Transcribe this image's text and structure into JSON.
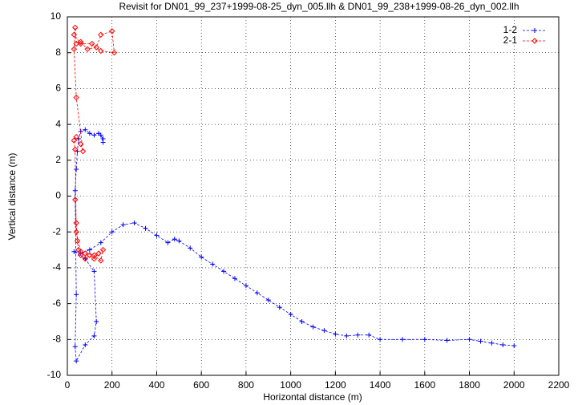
{
  "chart_data": {
    "type": "line",
    "title": "Revisit for DN01_99_237+1999-08-25_dyn_005.llh & DN01_99_238+1999-08-26_dyn_002.llh",
    "x_label": "Horizontal distance (m)",
    "y_label": "Vertical distance (m)",
    "xlim": [
      0,
      2200
    ],
    "xticks": [
      0,
      200,
      400,
      600,
      800,
      1000,
      1200,
      1400,
      1600,
      1800,
      2000,
      2200
    ],
    "ylim": [
      -10,
      10
    ],
    "yticks": [
      -10,
      -8,
      -6,
      -4,
      -2,
      0,
      2,
      4,
      6,
      8,
      10
    ],
    "grid": true,
    "legend": "top-right",
    "series": [
      {
        "name": "1-2",
        "color": "#0000ff",
        "marker": "plus",
        "x": [
          2000,
          1950,
          1900,
          1850,
          1800,
          1700,
          1600,
          1500,
          1400,
          1350,
          1300,
          1250,
          1200,
          1150,
          1100,
          1050,
          1000,
          950,
          900,
          850,
          800,
          750,
          700,
          650,
          600,
          550,
          500,
          480,
          450,
          400,
          350,
          300,
          250,
          200,
          150,
          100,
          60,
          30,
          80,
          120,
          130,
          120,
          80,
          40,
          35,
          40,
          35,
          40,
          45,
          50,
          60,
          80,
          100,
          120,
          140,
          160,
          150,
          160
        ],
        "values": [
          -8.35,
          -8.3,
          -8.2,
          -8.1,
          -8.0,
          -8.05,
          -8.0,
          -8.0,
          -8.0,
          -7.75,
          -7.75,
          -7.8,
          -7.7,
          -7.5,
          -7.3,
          -7.0,
          -6.6,
          -6.2,
          -5.8,
          -5.4,
          -5.0,
          -4.6,
          -4.2,
          -3.8,
          -3.4,
          -2.9,
          -2.5,
          -2.4,
          -2.6,
          -2.2,
          -1.8,
          -1.5,
          -1.6,
          -2.0,
          -2.6,
          -3.0,
          -3.2,
          -3.1,
          -3.5,
          -4.2,
          -7.0,
          -7.8,
          -8.3,
          -9.2,
          -8.4,
          -5.5,
          0.3,
          1.5,
          2.5,
          3.2,
          3.6,
          3.7,
          3.5,
          3.4,
          3.5,
          3.2,
          3.4,
          3.0
        ]
      },
      {
        "name": "2-1",
        "color": "#ff0000",
        "marker": "diamond",
        "x": [
          35,
          40,
          45,
          50,
          60,
          80,
          100,
          120,
          140,
          160,
          150,
          120,
          80,
          60,
          40,
          35,
          30,
          40,
          60,
          70,
          40,
          30,
          35,
          40,
          60,
          90,
          130,
          150,
          200,
          210,
          150,
          110,
          60,
          30
        ],
        "values": [
          -0.2,
          -1.5,
          -2.5,
          -3.0,
          -3.3,
          -3.5,
          -3.3,
          -3.5,
          -3.2,
          -3.0,
          -3.6,
          -3.3,
          -3.2,
          -3.1,
          -2.0,
          2.6,
          3.1,
          3.3,
          2.9,
          2.5,
          5.5,
          8.2,
          9.4,
          8.5,
          8.6,
          8.2,
          8.3,
          9.0,
          9.2,
          8.0,
          8.1,
          8.5,
          8.5,
          9.0
        ]
      }
    ]
  }
}
